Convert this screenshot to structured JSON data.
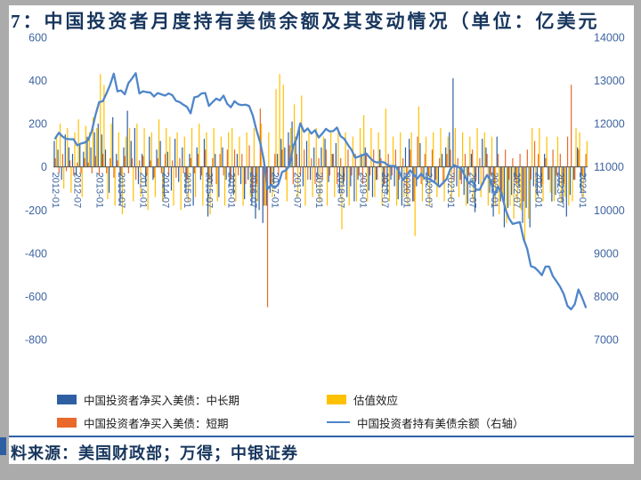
{
  "title": "7：中国投资者月度持有美债余额及其变动情况（单位：亿美元",
  "source": "料来源：美国财政部；万得；中银证券",
  "colors": {
    "title": "#17365d",
    "source": "#17365d",
    "axis_label": "#3e64a0",
    "bar_midlong": "#2e5fa3",
    "bar_short": "#e8692a",
    "bar_valuation": "#ffc000",
    "line_holdings": "#4f86c9",
    "zero_axis": "#4d4d4d",
    "separator": "#2f5fa5",
    "accent": "#2e5fa3",
    "frame_bg": "#ababab",
    "panel_bg": "#ffffff"
  },
  "legend": [
    {
      "label": "中国投资者净买入美债：中长期",
      "type": "rect",
      "color": "#2e5fa3"
    },
    {
      "label": "估值效应",
      "type": "rect",
      "color": "#ffc000"
    },
    {
      "label": "中国投资者净买入美债：短期",
      "type": "rect",
      "color": "#e8692a"
    },
    {
      "label": "中国投资者持有美债余额（右轴）",
      "type": "line",
      "color": "#4f86c9"
    }
  ],
  "chart_data": {
    "type": "bar",
    "subtype": "clustered bars with overlay line, dual axes",
    "title": "7：中国投资者月度持有美债余额及其变动情况（单位：亿美元）",
    "xlabel": "",
    "ylabel_left": "",
    "ylabel_right": "",
    "grid": false,
    "legend_position": "bottom",
    "left_axis": {
      "min": -800,
      "max": 600,
      "ticks": [
        600,
        400,
        200,
        0,
        -200,
        -400,
        -600,
        -800
      ]
    },
    "right_axis": {
      "min": 7000,
      "max": 14000,
      "ticks": [
        14000,
        13000,
        12000,
        11000,
        10000,
        9000,
        8000,
        7000
      ]
    },
    "x_tick_labels": [
      "2012-01",
      "2012-07",
      "2013-01",
      "2013-07",
      "2014-01",
      "2014-07",
      "2015-01",
      "2015-07",
      "2016-01",
      "2016-07",
      "2017-01",
      "2017-07",
      "2018-01",
      "2018-07",
      "2019-01",
      "2019-07",
      "2020-01",
      "2020-07",
      "2021-01",
      "2021-07",
      "2022-01",
      "2022-07",
      "2023-01",
      "2023-07",
      "2024-01"
    ],
    "categories": [
      "2012-01",
      "2012-02",
      "2012-03",
      "2012-04",
      "2012-05",
      "2012-06",
      "2012-07",
      "2012-08",
      "2012-09",
      "2012-10",
      "2012-11",
      "2012-12",
      "2013-01",
      "2013-02",
      "2013-03",
      "2013-04",
      "2013-05",
      "2013-06",
      "2013-07",
      "2013-08",
      "2013-09",
      "2013-10",
      "2013-11",
      "2013-12",
      "2014-01",
      "2014-02",
      "2014-03",
      "2014-04",
      "2014-05",
      "2014-06",
      "2014-07",
      "2014-08",
      "2014-09",
      "2014-10",
      "2014-11",
      "2014-12",
      "2015-01",
      "2015-02",
      "2015-03",
      "2015-04",
      "2015-05",
      "2015-06",
      "2015-07",
      "2015-08",
      "2015-09",
      "2015-10",
      "2015-11",
      "2015-12",
      "2016-01",
      "2016-02",
      "2016-03",
      "2016-04",
      "2016-05",
      "2016-06",
      "2016-07",
      "2016-08",
      "2016-09",
      "2016-10",
      "2016-11",
      "2016-12",
      "2017-01",
      "2017-02",
      "2017-03",
      "2017-04",
      "2017-05",
      "2017-06",
      "2017-07",
      "2017-08",
      "2017-09",
      "2017-10",
      "2017-11",
      "2017-12",
      "2018-01",
      "2018-02",
      "2018-03",
      "2018-04",
      "2018-05",
      "2018-06",
      "2018-07",
      "2018-08",
      "2018-09",
      "2018-10",
      "2018-11",
      "2018-12",
      "2019-01",
      "2019-02",
      "2019-03",
      "2019-04",
      "2019-05",
      "2019-06",
      "2019-07",
      "2019-08",
      "2019-09",
      "2019-10",
      "2019-11",
      "2019-12",
      "2020-01",
      "2020-02",
      "2020-03",
      "2020-04",
      "2020-05",
      "2020-06",
      "2020-07",
      "2020-08",
      "2020-09",
      "2020-10",
      "2020-11",
      "2020-12",
      "2021-01",
      "2021-02",
      "2021-03",
      "2021-04",
      "2021-05",
      "2021-06",
      "2021-07",
      "2021-08",
      "2021-09",
      "2021-10",
      "2021-11",
      "2021-12",
      "2022-01",
      "2022-02",
      "2022-03",
      "2022-04",
      "2022-05",
      "2022-06",
      "2022-07",
      "2022-08",
      "2022-09",
      "2022-10",
      "2022-11",
      "2022-12",
      "2023-01",
      "2023-02",
      "2023-03",
      "2023-04",
      "2023-05",
      "2023-06",
      "2023-07",
      "2023-08",
      "2023-09",
      "2023-10",
      "2023-11",
      "2023-12",
      "2024-01",
      "2024-02"
    ],
    "series": [
      {
        "name": "中国投资者净买入美债：中长期",
        "type": "bar",
        "axis": "left",
        "color": "#2e5fa3",
        "values": [
          120,
          80,
          -60,
          150,
          90,
          60,
          -40,
          110,
          70,
          140,
          90,
          160,
          200,
          150,
          80,
          -120,
          230,
          60,
          -180,
          90,
          260,
          120,
          180,
          -80,
          60,
          -90,
          140,
          -60,
          80,
          120,
          -140,
          70,
          -110,
          130,
          -70,
          90,
          -120,
          60,
          -180,
          90,
          -60,
          130,
          -230,
          -80,
          60,
          -140,
          90,
          -60,
          -90,
          -130,
          60,
          -80,
          -150,
          -60,
          -180,
          -240,
          -200,
          -260,
          -180,
          -120,
          -80,
          60,
          130,
          90,
          160,
          210,
          140,
          180,
          -90,
          120,
          -60,
          90,
          -60,
          90,
          130,
          -70,
          60,
          110,
          -120,
          -80,
          -140,
          -90,
          -160,
          -60,
          60,
          90,
          -110,
          -140,
          -60,
          80,
          -90,
          -130,
          -60,
          -90,
          -150,
          -180,
          90,
          130,
          -160,
          -90,
          110,
          -60,
          -80,
          -50,
          -70,
          -90,
          60,
          90,
          160,
          410,
          -90,
          -60,
          -130,
          -170,
          60,
          -210,
          -80,
          130,
          90,
          -120,
          -230,
          140,
          -160,
          -280,
          -190,
          -130,
          -60,
          -90,
          -260,
          -190,
          -280,
          -90,
          -130,
          -90,
          60,
          -60,
          -160,
          -130,
          -90,
          -170,
          -230,
          -130,
          -60,
          90,
          -120,
          -60
        ]
      },
      {
        "name": "中国投资者净买入美债：短期",
        "type": "bar",
        "axis": "left",
        "color": "#e8692a",
        "values": [
          40,
          -30,
          60,
          -20,
          30,
          -40,
          20,
          -30,
          40,
          20,
          -30,
          50,
          -40,
          60,
          -30,
          40,
          -50,
          30,
          -40,
          50,
          -30,
          40,
          -60,
          30,
          50,
          -40,
          30,
          -50,
          40,
          -30,
          60,
          -40,
          30,
          -50,
          40,
          -30,
          -60,
          40,
          -30,
          60,
          -40,
          80,
          -60,
          40,
          -80,
          60,
          -40,
          80,
          -60,
          80,
          -40,
          60,
          -80,
          100,
          -120,
          -80,
          270,
          -180,
          -650,
          -80,
          60,
          -40,
          80,
          -60,
          100,
          -80,
          60,
          -40,
          80,
          -60,
          40,
          -80,
          40,
          -60,
          80,
          -40,
          60,
          -80,
          40,
          -60,
          80,
          -40,
          60,
          -40,
          -80,
          60,
          -40,
          80,
          -60,
          40,
          -80,
          60,
          -40,
          80,
          -60,
          40,
          -120,
          80,
          -160,
          140,
          -80,
          60,
          -40,
          80,
          -60,
          40,
          -80,
          60,
          80,
          -60,
          40,
          -80,
          60,
          -40,
          80,
          -60,
          40,
          -80,
          60,
          -40,
          -80,
          60,
          -120,
          80,
          -60,
          40,
          -80,
          60,
          -160,
          80,
          -60,
          120,
          60,
          -80,
          40,
          -60,
          80,
          -40,
          60,
          -80,
          140,
          380,
          -60,
          80,
          -40,
          60
        ]
      },
      {
        "name": "估值效应",
        "type": "bar",
        "axis": "left",
        "color": "#ffc000",
        "values": [
          150,
          200,
          -100,
          180,
          -120,
          160,
          220,
          -140,
          190,
          160,
          230,
          180,
          430,
          380,
          -150,
          200,
          -180,
          160,
          -220,
          140,
          180,
          -160,
          200,
          -140,
          180,
          -200,
          160,
          -140,
          220,
          -160,
          180,
          140,
          -180,
          160,
          -200,
          140,
          -160,
          180,
          -140,
          200,
          -180,
          160,
          -220,
          180,
          -160,
          140,
          -180,
          160,
          180,
          -160,
          140,
          -180,
          160,
          -140,
          180,
          -160,
          200,
          -180,
          160,
          -140,
          360,
          430,
          380,
          -160,
          180,
          290,
          -140,
          330,
          -180,
          160,
          -140,
          180,
          -160,
          140,
          -180,
          160,
          -140,
          180,
          -290,
          160,
          -180,
          140,
          -160,
          180,
          240,
          -160,
          180,
          -140,
          160,
          -180,
          270,
          -160,
          140,
          -180,
          160,
          -140,
          -180,
          160,
          -320,
          280,
          -160,
          140,
          -180,
          160,
          -140,
          180,
          -160,
          140,
          -160,
          180,
          -140,
          160,
          -180,
          140,
          -160,
          180,
          -140,
          160,
          -180,
          140,
          -180,
          -220,
          -160,
          -260,
          -180,
          -240,
          -160,
          -200,
          -350,
          -240,
          180,
          -160,
          180,
          -160,
          140,
          -120,
          -160,
          140,
          -160,
          -140,
          -180,
          -160,
          180,
          160,
          -140,
          120
        ]
      },
      {
        "name": "中国投资者持有美债余额（右轴）",
        "type": "line",
        "axis": "right",
        "color": "#4f86c9",
        "values": [
          11660,
          11790,
          11700,
          11650,
          11640,
          11640,
          11500,
          11540,
          11560,
          11620,
          11830,
          12200,
          12500,
          12520,
          12700,
          12900,
          13160,
          12750,
          12770,
          12680,
          12940,
          13050,
          13170,
          12700,
          12750,
          12730,
          12720,
          12630,
          12710,
          12680,
          12650,
          12700,
          12660,
          12530,
          12500,
          12440,
          12390,
          12240,
          12610,
          12630,
          12700,
          12710,
          12410,
          12500,
          12580,
          12540,
          12650,
          12460,
          12380,
          12520,
          12450,
          12430,
          12440,
          12410,
          12190,
          11850,
          11570,
          11160,
          10490,
          10580,
          10510,
          10600,
          10880,
          10920,
          11020,
          11470,
          11660,
          12010,
          11810,
          11890,
          11770,
          11850,
          11680,
          11770,
          11880,
          11820,
          11830,
          11910,
          11710,
          11650,
          11510,
          11390,
          11210,
          11240,
          11270,
          11310,
          11210,
          11130,
          11100,
          11120,
          11100,
          11030,
          11020,
          11020,
          10890,
          10700,
          10790,
          10920,
          10820,
          10730,
          10840,
          10740,
          10730,
          10680,
          10620,
          10540,
          10630,
          10720,
          10950,
          11040,
          11000,
          10960,
          10780,
          10620,
          10680,
          10470,
          10470,
          10650,
          10810,
          10690,
          10340,
          10540,
          10390,
          10030,
          9810,
          9680,
          9700,
          9720,
          9330,
          9100,
          8700,
          8670,
          8590,
          8490,
          8690,
          8690,
          8470,
          8350,
          8220,
          8050,
          7780,
          7700,
          7820,
          8160,
          7970,
          7750
        ]
      }
    ]
  }
}
